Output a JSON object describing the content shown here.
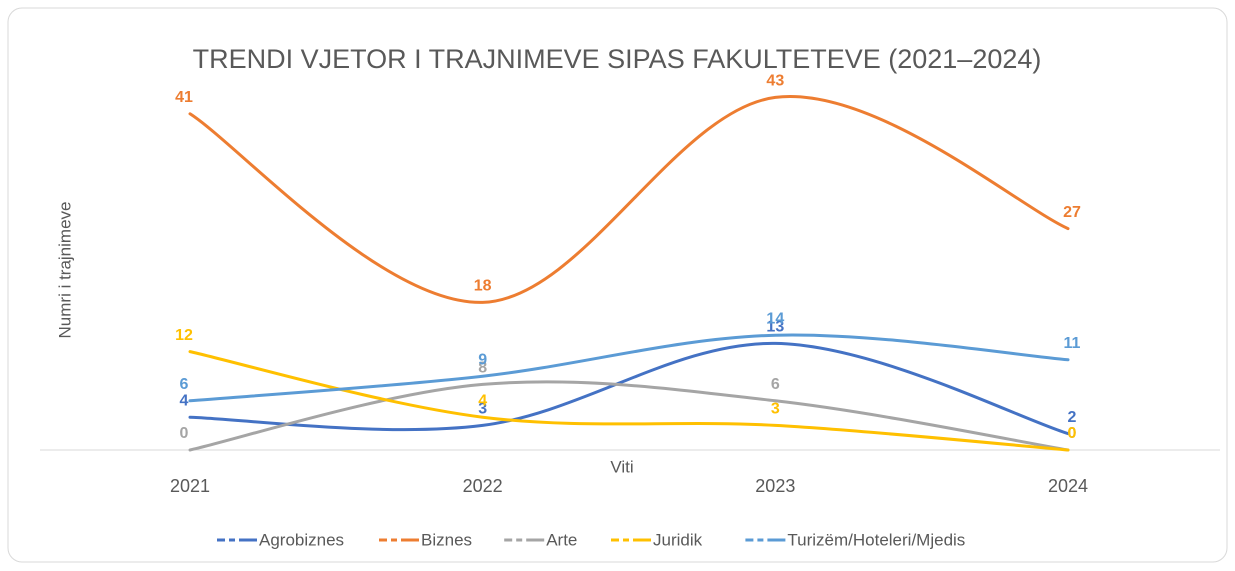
{
  "chart_data": {
    "type": "line",
    "title": "TRENDI VJETOR I TRAJNIMEVE SIPAS FAKULTETEVE (2021–2024)",
    "x_label": "Viti",
    "y_label": "Numri i trajnimeve",
    "categories": [
      "2021",
      "2022",
      "2023",
      "2024"
    ],
    "series": [
      {
        "name": "Agrobiznes",
        "color": "#4472c4",
        "values": [
          4,
          3,
          13,
          2
        ]
      },
      {
        "name": "Biznes",
        "color": "#ed7d31",
        "values": [
          41,
          18,
          43,
          27
        ]
      },
      {
        "name": "Arte",
        "color": "#a5a5a5",
        "values": [
          0,
          8,
          6,
          0
        ]
      },
      {
        "name": "Juridik",
        "color": "#ffc000",
        "values": [
          12,
          4,
          3,
          0
        ]
      },
      {
        "name": "Turizëm/Hoteleri/Mjedis",
        "color": "#5b9bd5",
        "values": [
          6,
          9,
          14,
          11
        ]
      }
    ],
    "ylim": [
      0,
      45
    ],
    "smooth": true,
    "legend": "bottom"
  }
}
